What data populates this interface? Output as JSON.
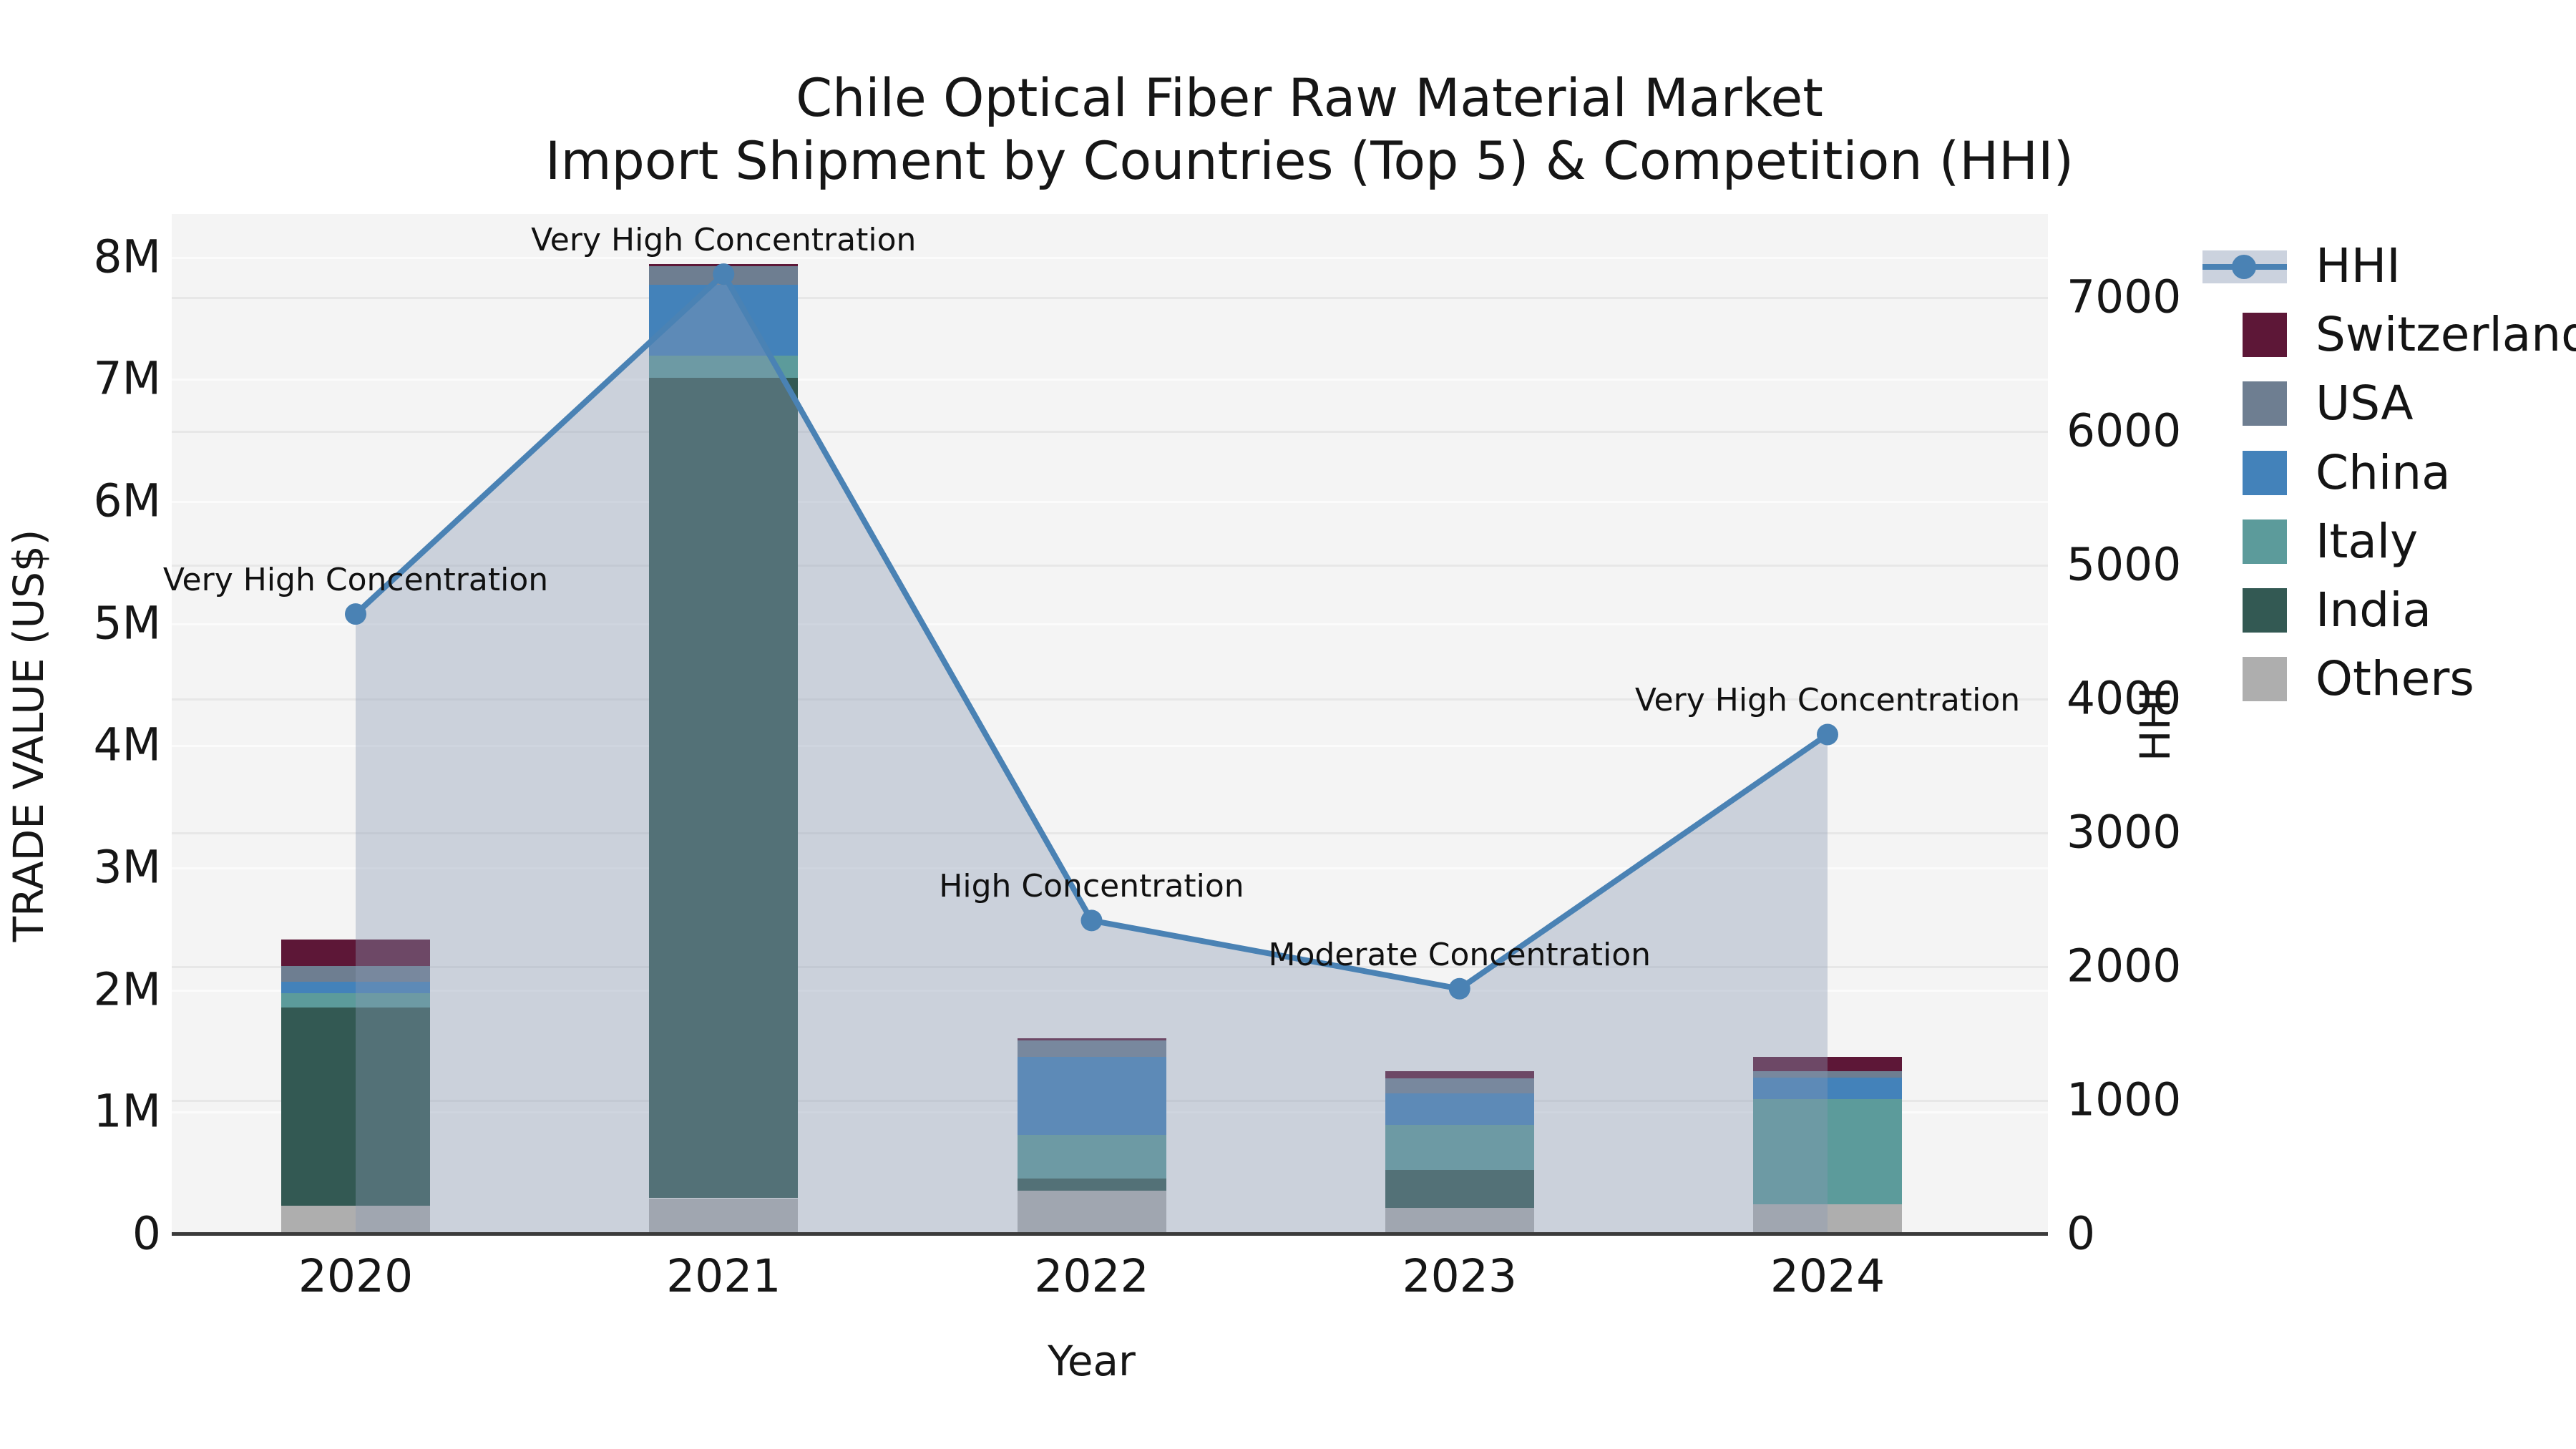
{
  "title": {
    "line1": "Chile Optical Fiber Raw Material Market",
    "line2": "Import Shipment by Countries (Top 5) & Competition (HHI)"
  },
  "axes": {
    "left": {
      "label": "TRADE VALUE (US$)",
      "ticks": [
        {
          "label": "0",
          "value": 0
        },
        {
          "label": "1M",
          "value": 1000000
        },
        {
          "label": "2M",
          "value": 2000000
        },
        {
          "label": "3M",
          "value": 3000000
        },
        {
          "label": "4M",
          "value": 4000000
        },
        {
          "label": "5M",
          "value": 5000000
        },
        {
          "label": "6M",
          "value": 6000000
        },
        {
          "label": "7M",
          "value": 7000000
        },
        {
          "label": "8M",
          "value": 8000000
        }
      ]
    },
    "right": {
      "label": "HHI",
      "ticks": [
        {
          "label": "0",
          "value": 0
        },
        {
          "label": "1000",
          "value": 1000
        },
        {
          "label": "2000",
          "value": 2000
        },
        {
          "label": "3000",
          "value": 3000
        },
        {
          "label": "4000",
          "value": 4000
        },
        {
          "label": "5000",
          "value": 5000
        },
        {
          "label": "6000",
          "value": 6000
        },
        {
          "label": "7000",
          "value": 7000
        }
      ]
    },
    "x": {
      "label": "Year"
    }
  },
  "legend": {
    "items": [
      {
        "label": "HHI",
        "type": "line",
        "color": "#4a82b4",
        "band_color": "#cbd2de"
      },
      {
        "label": "Switzerland",
        "type": "swatch",
        "color": "#5d1737"
      },
      {
        "label": "USA",
        "type": "swatch",
        "color": "#6e7e91"
      },
      {
        "label": "China",
        "type": "swatch",
        "color": "#4382ba"
      },
      {
        "label": "Italy",
        "type": "swatch",
        "color": "#5c9b9b"
      },
      {
        "label": "India",
        "type": "swatch",
        "color": "#335953"
      },
      {
        "label": "Others",
        "type": "swatch",
        "color": "#aeaeae"
      }
    ]
  },
  "chart_data": {
    "type": "bar",
    "subtype": "stacked-bars-with-line-area-overlay",
    "title": "Chile Optical Fiber Raw Material Market",
    "subtitle": "Import Shipment by Countries (Top 5) & Competition (HHI)",
    "xlabel": "Year",
    "ylabel_left": "TRADE VALUE (US$)",
    "ylabel_right": "HHI",
    "categories": [
      "2020",
      "2021",
      "2022",
      "2023",
      "2024"
    ],
    "bar_series_bottom_to_top": [
      {
        "name": "Others",
        "color": "#aeaeae",
        "values": [
          230000,
          290000,
          350000,
          210000,
          240000
        ]
      },
      {
        "name": "India",
        "color": "#335953",
        "values": [
          1620000,
          6720000,
          100000,
          310000,
          0
        ]
      },
      {
        "name": "Italy",
        "color": "#5c9b9b",
        "values": [
          120000,
          180000,
          360000,
          370000,
          860000
        ]
      },
      {
        "name": "China",
        "color": "#4382ba",
        "values": [
          90000,
          580000,
          640000,
          260000,
          180000
        ]
      },
      {
        "name": "USA",
        "color": "#6e7e91",
        "values": [
          130000,
          150000,
          130000,
          120000,
          50000
        ]
      },
      {
        "name": "Switzerland",
        "color": "#5d1737",
        "values": [
          220000,
          20000,
          20000,
          60000,
          120000
        ]
      }
    ],
    "bar_totals": [
      2410000,
      7940000,
      1600000,
      1330000,
      1450000
    ],
    "line_series": {
      "name": "HHI",
      "color": "#4a82b4",
      "values": [
        4630,
        7170,
        2340,
        1830,
        3730
      ]
    },
    "annotations": [
      {
        "year": "2020",
        "text": "Very High Concentration"
      },
      {
        "year": "2021",
        "text": "Very High Concentration"
      },
      {
        "year": "2022",
        "text": "High Concentration"
      },
      {
        "year": "2023",
        "text": "Moderate Concentration"
      },
      {
        "year": "2024",
        "text": "Very High Concentration"
      }
    ],
    "ylim_left": [
      0,
      8350000
    ],
    "ylim_right": [
      0,
      7620
    ],
    "grid": true,
    "legend_position": "right-outside",
    "area_color": "rgba(136,152,180,0.38)"
  }
}
